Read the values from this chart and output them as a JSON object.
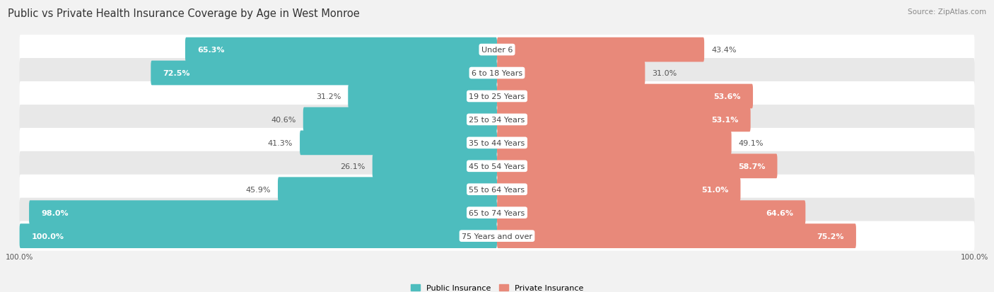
{
  "title": "Public vs Private Health Insurance Coverage by Age in West Monroe",
  "source": "Source: ZipAtlas.com",
  "categories": [
    "Under 6",
    "6 to 18 Years",
    "19 to 25 Years",
    "25 to 34 Years",
    "35 to 44 Years",
    "45 to 54 Years",
    "55 to 64 Years",
    "65 to 74 Years",
    "75 Years and over"
  ],
  "public_values": [
    65.3,
    72.5,
    31.2,
    40.6,
    41.3,
    26.1,
    45.9,
    98.0,
    100.0
  ],
  "private_values": [
    43.4,
    31.0,
    53.6,
    53.1,
    49.1,
    58.7,
    51.0,
    64.6,
    75.2
  ],
  "public_color": "#4dbdbe",
  "private_color": "#e8897a",
  "bg_color": "#f2f2f2",
  "row_bg_even": "#ffffff",
  "row_bg_odd": "#e8e8e8",
  "bar_height": 0.62,
  "max_value": 100.0,
  "legend_public": "Public Insurance",
  "legend_private": "Private Insurance",
  "title_fontsize": 10.5,
  "label_fontsize": 8,
  "category_fontsize": 8,
  "source_fontsize": 7.5,
  "axis_label_fontsize": 7.5
}
